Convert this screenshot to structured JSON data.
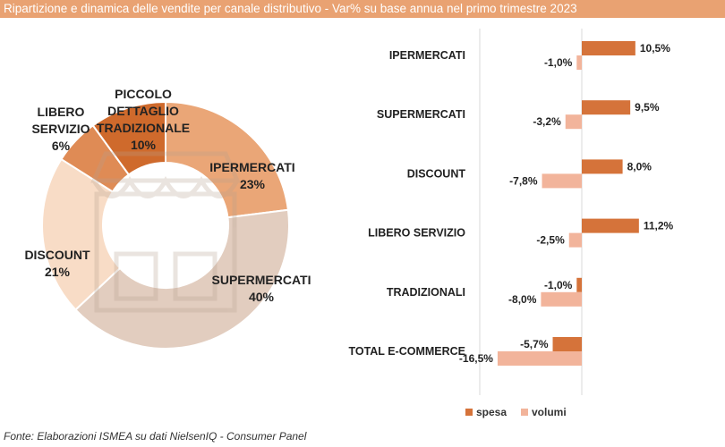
{
  "title": "Ripartizione e dinamica delle vendite per canale distributivo - Var% su base annua nel primo trimestre 2023",
  "source": "Fonte: Elaborazioni ISMEA su dati NielsenIQ - Consumer Panel",
  "colors": {
    "title_bg": "#e9a272",
    "spesa": "#d5733a",
    "volumi": "#f2b49b"
  },
  "chart_data": [
    {
      "type": "pie",
      "variant": "donut",
      "title": "",
      "slices": [
        {
          "label_lines": [
            "IPERMERCATI"
          ],
          "pct_text": "23%",
          "value": 23,
          "color": "#eaa677"
        },
        {
          "label_lines": [
            "SUPERMERCATI"
          ],
          "pct_text": "40%",
          "value": 40,
          "color": "#e2cdbf"
        },
        {
          "label_lines": [
            "DISCOUNT"
          ],
          "pct_text": "21%",
          "value": 21,
          "color": "#f8dcc6"
        },
        {
          "label_lines": [
            "LIBERO",
            "SERVIZIO"
          ],
          "pct_text": "6%",
          "value": 6,
          "color": "#df8b55"
        },
        {
          "label_lines": [
            "PICCOLO",
            "DETTAGLIO",
            "TRADIZIONALE"
          ],
          "pct_text": "10%",
          "value": 10,
          "color": "#cf6a2c"
        }
      ]
    },
    {
      "type": "bar",
      "orientation": "horizontal",
      "categories": [
        "IPERMERCATI",
        "SUPERMERCATI",
        "DISCOUNT",
        "LIBERO SERVIZIO",
        "TRADIZIONALI",
        "TOTAL E-COMMERCE"
      ],
      "series": [
        {
          "name": "spesa",
          "values": [
            10.5,
            9.5,
            8.0,
            11.2,
            -1.0,
            -5.7
          ],
          "labels": [
            "10,5%",
            "9,5%",
            "8,0%",
            "11,2%",
            "-1,0%",
            "-5,7%"
          ]
        },
        {
          "name": "volumi",
          "values": [
            -1.0,
            -3.2,
            -7.8,
            -2.5,
            -8.0,
            -16.5
          ],
          "labels": [
            "-1,0%",
            "-3,2%",
            "-7,8%",
            "-2,5%",
            "-8,0%",
            "-16,5%"
          ]
        }
      ],
      "xlim": [
        -18,
        18
      ],
      "legend": "bottom"
    }
  ]
}
